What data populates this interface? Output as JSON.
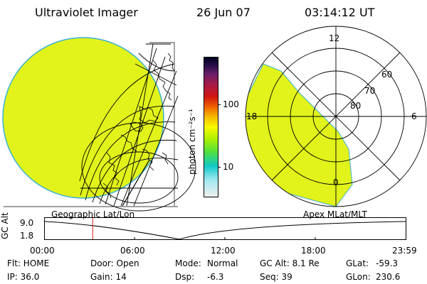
{
  "header": {
    "instrument": "Ultraviolet Imager",
    "date": "26 Jun 07",
    "time": "03:14:12 UT"
  },
  "colorbar": {
    "unit_label": "photon cm⁻²s⁻¹",
    "ticks": [
      "100",
      "10"
    ],
    "colors": [
      "#000020",
      "#2a0f4c",
      "#6a1f6a",
      "#aa1a44",
      "#d01414",
      "#f06800",
      "#f4b400",
      "#fafa00",
      "#b4f000",
      "#50e040",
      "#10c8c8",
      "#a0e8f0",
      "#f0f0f0"
    ]
  },
  "left_panel": {
    "label": "Geographic Lat/Lon",
    "fill_color": "#e1f31a"
  },
  "right_panel": {
    "label": "Apex MLat/MLT",
    "mlt_labels": {
      "top": "12",
      "left": "18",
      "right": "6",
      "bottom": "0"
    },
    "lat_labels": [
      "60",
      "70",
      "80"
    ],
    "fill_color": "#e1f31a"
  },
  "altitude_strip": {
    "axis_label": "GC Alt",
    "ticks": [
      "9.0",
      "1.8"
    ],
    "time_ticks": [
      "00:00",
      "06:00",
      "12:00",
      "18:00",
      "23:59"
    ],
    "current_time_fraction": 0.1326
  },
  "info": {
    "row1": {
      "flt": "Flt: HOME",
      "door": "Door: Open",
      "mode_label": "Mode:",
      "mode_value": "Normal",
      "gcalt": "GC Alt: 8.1 Re",
      "glat_label": "GLat:",
      "glat_value": "-59.3"
    },
    "row2": {
      "ip": "IP: 36.0",
      "gain": "Gain: 14",
      "dsp_label": "Dsp:",
      "dsp_value": "-6.3",
      "seq": "Seq: 39",
      "glon_label": "GLon:",
      "glon_value": "230.6"
    }
  }
}
